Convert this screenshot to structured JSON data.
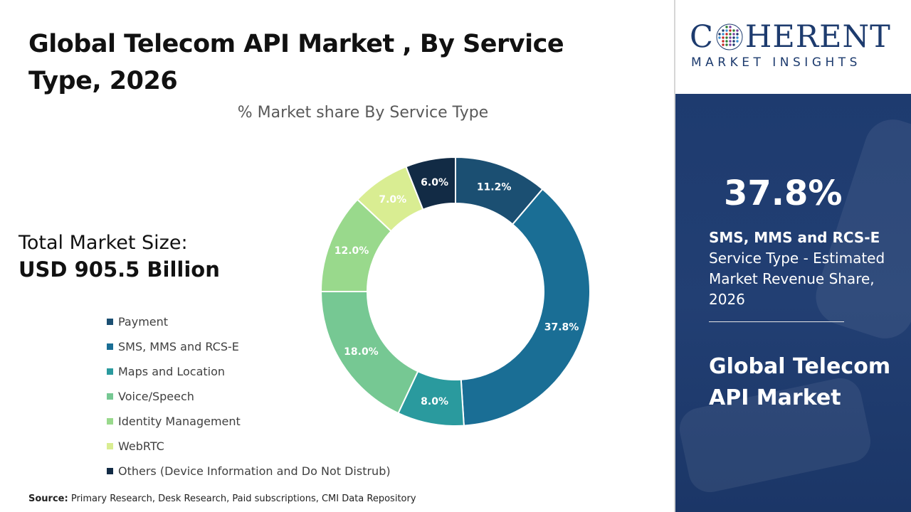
{
  "header": {
    "title": "Global Telecom API Market , By Service Type, 2026"
  },
  "market_size": {
    "label": "Total Market Size:",
    "value": "USD 905.5 Billion"
  },
  "source": {
    "label": "Source:",
    "text": "Primary Research, Desk Research, Paid subscriptions, CMI Data Repository"
  },
  "logo": {
    "main_first": "C",
    "main_rest": "HERENT",
    "sub": "MARKET INSIGHTS"
  },
  "highlight": {
    "percentage": "37.8%",
    "segment": "SMS, MMS and RCS-E",
    "description": "Service Type - Estimated Market Revenue Share, 2026",
    "market_name": "Global Telecom API Market"
  },
  "colors": {
    "brand_navy": "#1d3b6e",
    "panel_blue": "#1e3b6f"
  },
  "chart_data": {
    "type": "donut",
    "title": "% Market share By Service Type",
    "categories": [
      "Payment",
      "SMS, MMS and RCS-E",
      "Maps and Location",
      "Voice/Speech",
      "Identity Management",
      "WebRTC",
      "Others (Device Information and Do Not Distrub)"
    ],
    "values": [
      11.2,
      37.8,
      8.0,
      18.0,
      12.0,
      7.0,
      6.0
    ],
    "value_labels": [
      "11.2%",
      "37.8%",
      "8.0%",
      "18.0%",
      "12.0%",
      "7.0%",
      "6.0%"
    ],
    "colors": [
      "#1b4f72",
      "#1a6e95",
      "#2a9a9e",
      "#76c893",
      "#99d98c",
      "#d9ed92",
      "#122b45"
    ],
    "label_colors": [
      "#ffffff",
      "#ffffff",
      "#ffffff",
      "#ffffff",
      "#ffffff",
      "#ffffff",
      "#ffffff"
    ],
    "legend_position": "left",
    "start_angle_deg": 0,
    "direction": "clockwise"
  }
}
